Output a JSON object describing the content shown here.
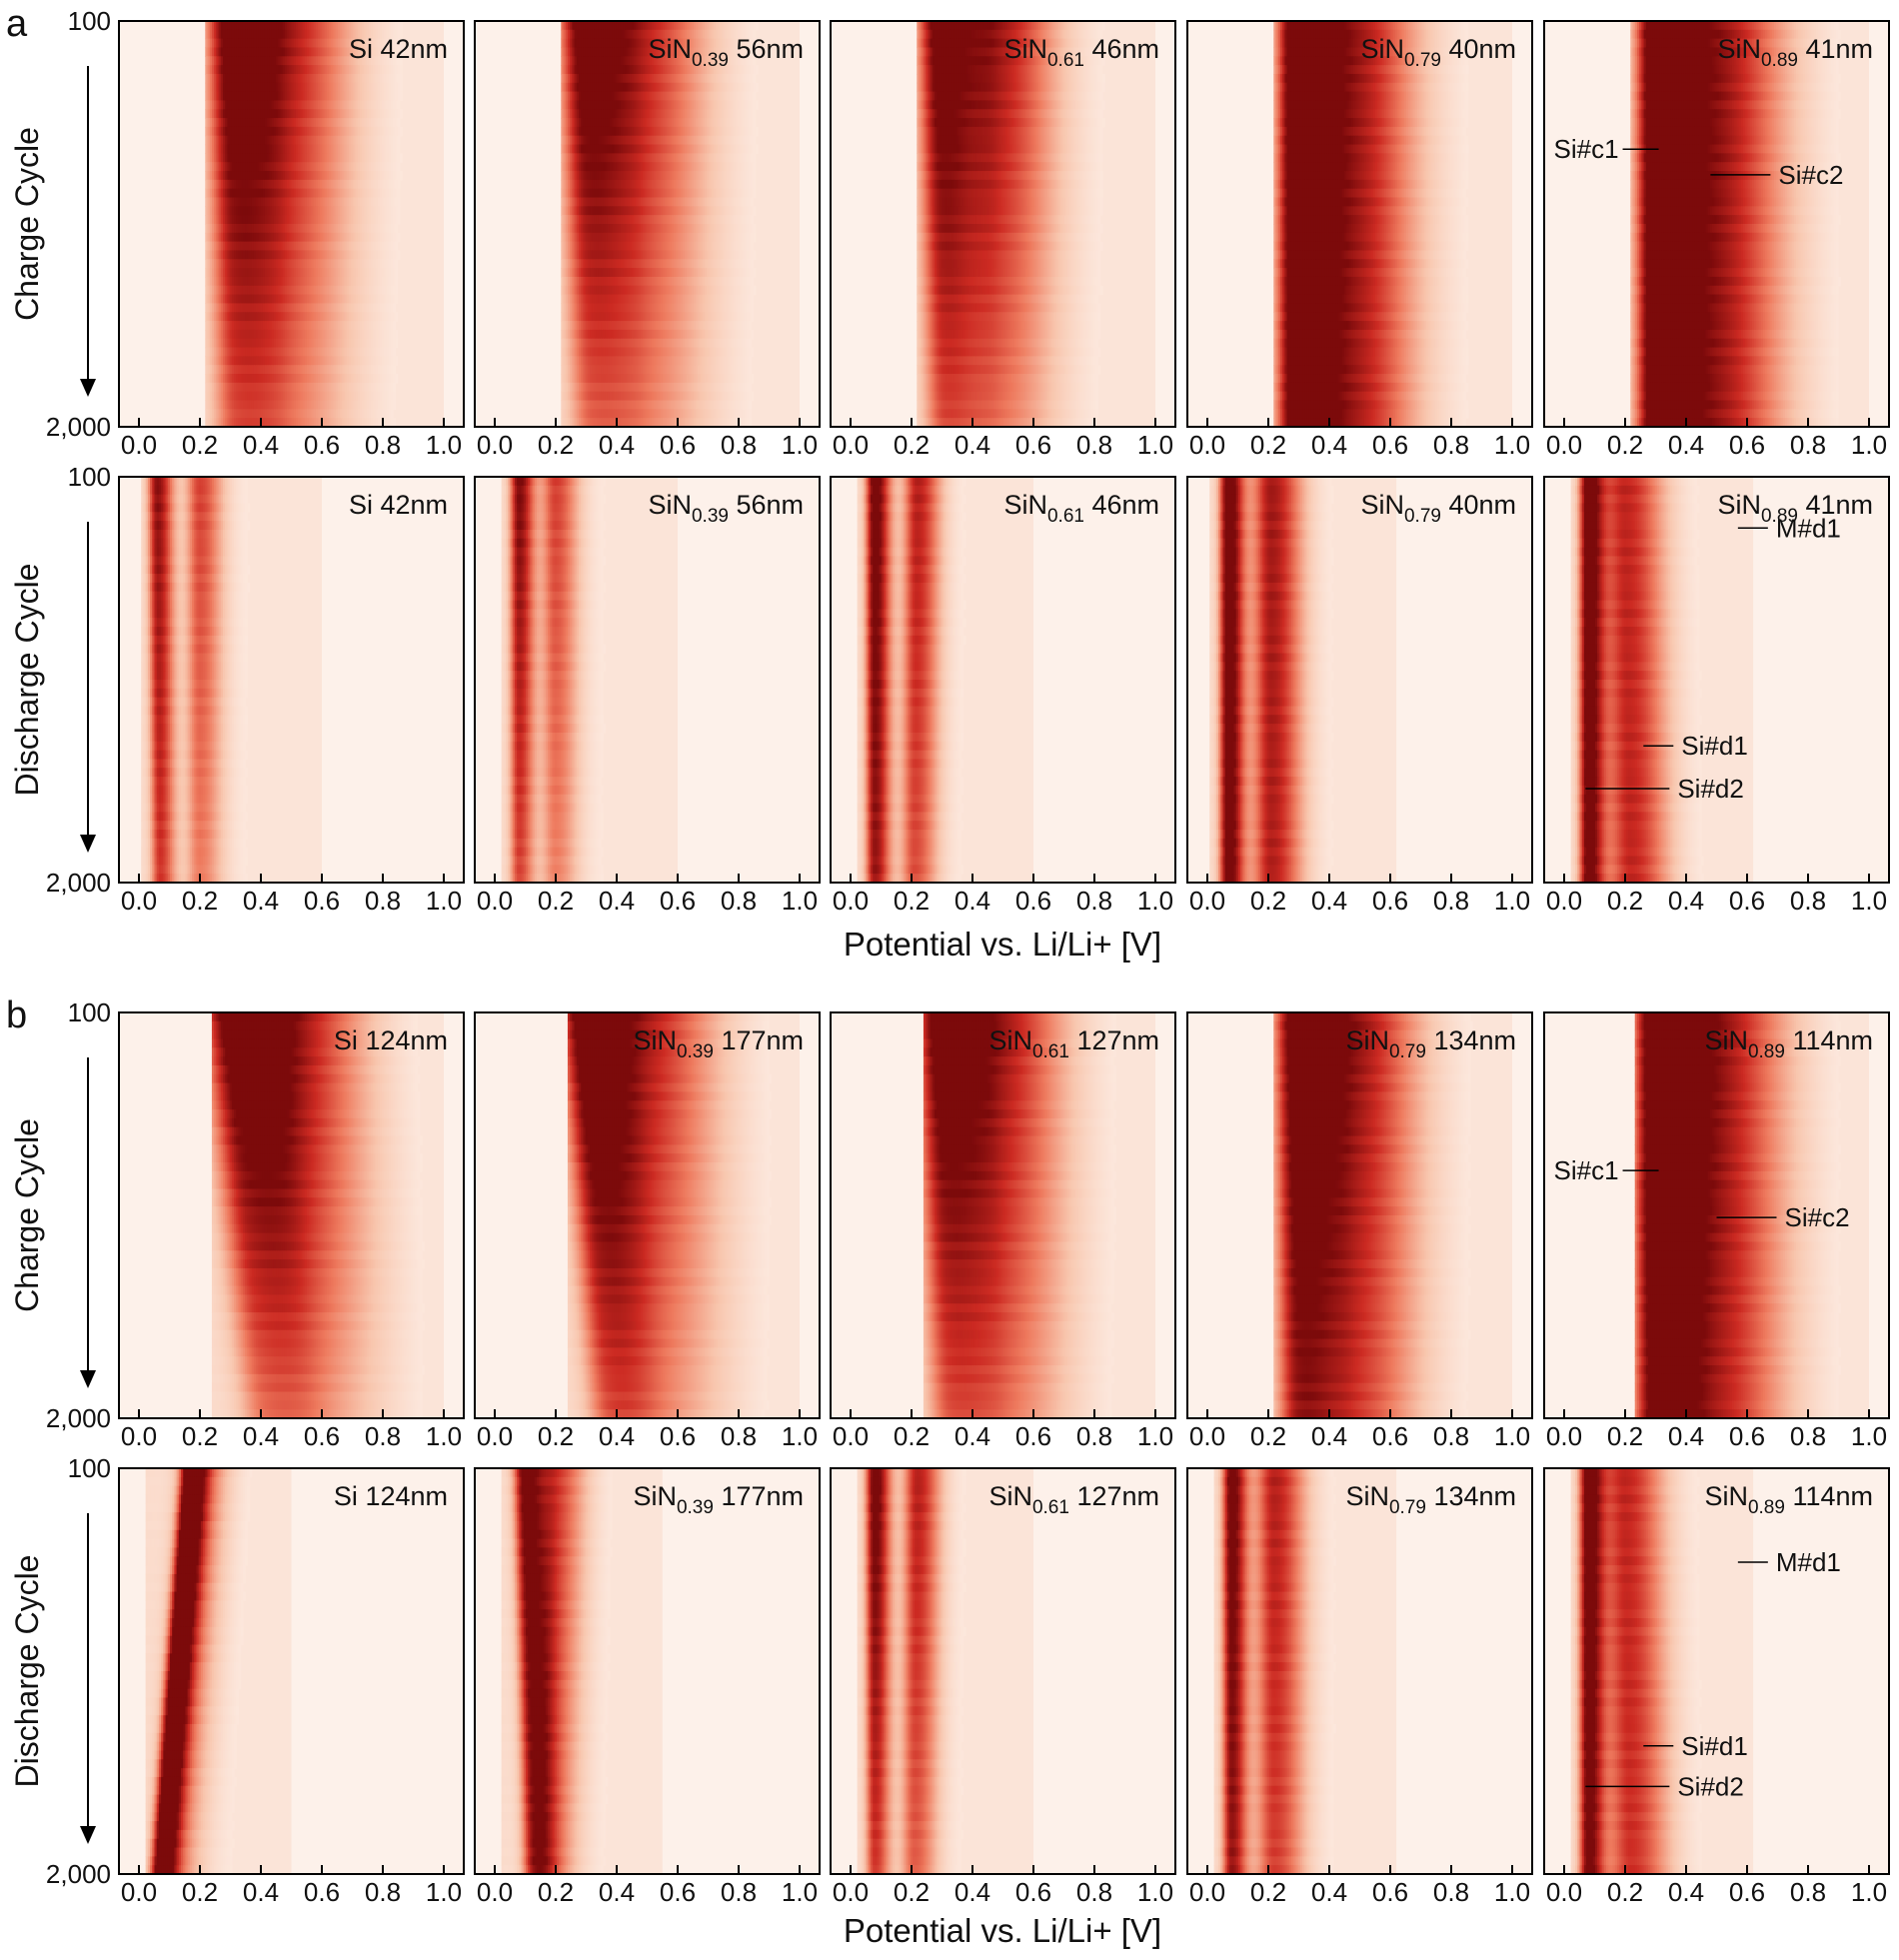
{
  "figure": {
    "x_axis_label": "Potential vs. Li/Li+ [V]",
    "x_ticks": [
      "0.0",
      "0.2",
      "0.4",
      "0.6",
      "0.8",
      "1.0"
    ],
    "y_ticks": [
      "100",
      "2,000"
    ],
    "colormap": [
      "#fdf1ea",
      "#f8c6ae",
      "#ee7a5e",
      "#cc2a22",
      "#7c0a0b"
    ],
    "frame_color": "#000000"
  },
  "chart_data": [
    {
      "panel": "a",
      "type": "heatmap",
      "description_label": "",
      "rows": [
        {
          "ylabel": "Charge Cycle",
          "kind": "charge",
          "ylim": [
            100,
            2000
          ],
          "xlim": [
            0.0,
            1.0
          ],
          "subplots": [
            {
              "material": "Si",
              "sub": "",
              "thickness": "42nm",
              "peaks": [
                {
                  "v": [
                    0.3,
                    0.32
                  ],
                  "w": 0.05,
                  "a": [
                    1.0,
                    0.45
                  ]
                },
                {
                  "v": [
                    0.47,
                    0.48
                  ],
                  "w": 0.09,
                  "a": [
                    0.75,
                    0.38
                  ]
                }
              ],
              "extent": [
                0.24,
                1.0
              ],
              "annotations": []
            },
            {
              "material": "SiN",
              "sub": "0.39",
              "thickness": "56nm",
              "peaks": [
                {
                  "v": [
                    0.29,
                    0.32
                  ],
                  "w": 0.05,
                  "a": [
                    1.0,
                    0.4
                  ]
                },
                {
                  "v": [
                    0.47,
                    0.49
                  ],
                  "w": 0.09,
                  "a": [
                    0.7,
                    0.35
                  ]
                }
              ],
              "extent": [
                0.24,
                1.0
              ],
              "annotations": []
            },
            {
              "material": "SiN",
              "sub": "0.61",
              "thickness": "46nm",
              "peaks": [
                {
                  "v": [
                    0.29,
                    0.31
                  ],
                  "w": 0.045,
                  "a": [
                    1.0,
                    0.5
                  ]
                },
                {
                  "v": [
                    0.47,
                    0.48
                  ],
                  "w": 0.08,
                  "a": [
                    0.8,
                    0.4
                  ]
                }
              ],
              "extent": [
                0.24,
                1.0
              ],
              "annotations": []
            },
            {
              "material": "SiN",
              "sub": "0.79",
              "thickness": "40nm",
              "peaks": [
                {
                  "v": [
                    0.29,
                    0.29
                  ],
                  "w": 0.04,
                  "a": [
                    1.05,
                    1.0
                  ]
                },
                {
                  "v": [
                    0.45,
                    0.45
                  ],
                  "w": 0.09,
                  "a": [
                    0.85,
                    0.8
                  ]
                }
              ],
              "extent": [
                0.24,
                1.0
              ],
              "annotations": []
            },
            {
              "material": "SiN",
              "sub": "0.89",
              "thickness": "41nm",
              "peaks": [
                {
                  "v": [
                    0.3,
                    0.3
                  ],
                  "w": 0.04,
                  "a": [
                    1.05,
                    1.0
                  ]
                },
                {
                  "v": [
                    0.46,
                    0.46
                  ],
                  "w": 0.1,
                  "a": [
                    0.9,
                    0.85
                  ]
                }
              ],
              "extent": [
                0.24,
                1.0
              ],
              "annotations": [
                {
                  "text": "Si#c1",
                  "side": "left",
                  "x": 0.31,
                  "cycle": 700
                },
                {
                  "text": "Si#c2",
                  "side": "right",
                  "x": 0.48,
                  "cycle": 820
                }
              ]
            }
          ]
        },
        {
          "ylabel": "Discharge Cycle",
          "kind": "discharge",
          "ylim": [
            100,
            2000
          ],
          "xlim": [
            0.0,
            1.0
          ],
          "subplots": [
            {
              "material": "Si",
              "sub": "",
              "thickness": "42nm",
              "peaks": [
                {
                  "v": [
                    0.06,
                    0.07
                  ],
                  "w": 0.02,
                  "a": [
                    0.85,
                    0.6
                  ]
                },
                {
                  "v": [
                    0.2,
                    0.2
                  ],
                  "w": 0.03,
                  "a": [
                    0.6,
                    0.4
                  ]
                }
              ],
              "extent": [
                0.03,
                0.6
              ],
              "annotations": []
            },
            {
              "material": "SiN",
              "sub": "0.39",
              "thickness": "56nm",
              "peaks": [
                {
                  "v": [
                    0.08,
                    0.08
                  ],
                  "w": 0.02,
                  "a": [
                    0.9,
                    0.55
                  ]
                },
                {
                  "v": [
                    0.2,
                    0.2
                  ],
                  "w": 0.03,
                  "a": [
                    0.6,
                    0.38
                  ]
                }
              ],
              "extent": [
                0.04,
                0.6
              ],
              "annotations": []
            },
            {
              "material": "SiN",
              "sub": "0.61",
              "thickness": "46nm",
              "peaks": [
                {
                  "v": [
                    0.08,
                    0.08
                  ],
                  "w": 0.02,
                  "a": [
                    1.0,
                    0.8
                  ]
                },
                {
                  "v": [
                    0.22,
                    0.21
                  ],
                  "w": 0.03,
                  "a": [
                    0.75,
                    0.55
                  ]
                }
              ],
              "extent": [
                0.04,
                0.6
              ],
              "annotations": []
            },
            {
              "material": "SiN",
              "sub": "0.79",
              "thickness": "40nm",
              "peaks": [
                {
                  "v": [
                    0.07,
                    0.07
                  ],
                  "w": 0.02,
                  "a": [
                    1.05,
                    1.0
                  ]
                },
                {
                  "v": [
                    0.21,
                    0.21
                  ],
                  "w": 0.04,
                  "a": [
                    0.8,
                    0.75
                  ]
                }
              ],
              "extent": [
                0.03,
                0.62
              ],
              "annotations": []
            },
            {
              "material": "SiN",
              "sub": "0.89",
              "thickness": "41nm",
              "peaks": [
                {
                  "v": [
                    0.08,
                    0.08
                  ],
                  "w": 0.02,
                  "a": [
                    1.05,
                    1.0
                  ]
                },
                {
                  "v": [
                    0.2,
                    0.22
                  ],
                  "w": 0.05,
                  "a": [
                    0.7,
                    0.7
                  ]
                }
              ],
              "extent": [
                0.04,
                0.62
              ],
              "annotations": [
                {
                  "text": "M#d1",
                  "side": "right",
                  "x": 0.57,
                  "cycle": 340
                },
                {
                  "text": "Si#d1",
                  "side": "right",
                  "x": 0.26,
                  "cycle": 1360
                },
                {
                  "text": "Si#d2",
                  "side": "right",
                  "x": 0.07,
                  "cycle": 1560
                }
              ]
            }
          ]
        }
      ]
    },
    {
      "panel": "b",
      "type": "heatmap",
      "rows": [
        {
          "ylabel": "Charge Cycle",
          "kind": "charge",
          "ylim": [
            100,
            2000
          ],
          "xlim": [
            0.0,
            1.0
          ],
          "subplots": [
            {
              "material": "Si",
              "sub": "",
              "thickness": "124nm",
              "peaks": [
                {
                  "v": [
                    0.3,
                    0.42
                  ],
                  "w": 0.06,
                  "a": [
                    0.95,
                    0.35
                  ]
                },
                {
                  "v": [
                    0.48,
                    0.58
                  ],
                  "w": 0.1,
                  "a": [
                    0.8,
                    0.3
                  ]
                }
              ],
              "extent": [
                0.26,
                1.0
              ],
              "annotations": []
            },
            {
              "material": "SiN",
              "sub": "0.39",
              "thickness": "177nm",
              "peaks": [
                {
                  "v": [
                    0.29,
                    0.38
                  ],
                  "w": 0.05,
                  "a": [
                    1.0,
                    0.4
                  ]
                },
                {
                  "v": [
                    0.47,
                    0.52
                  ],
                  "w": 0.1,
                  "a": [
                    0.75,
                    0.35
                  ]
                }
              ],
              "extent": [
                0.26,
                1.0
              ],
              "annotations": []
            },
            {
              "material": "SiN",
              "sub": "0.61",
              "thickness": "127nm",
              "peaks": [
                {
                  "v": [
                    0.29,
                    0.33
                  ],
                  "w": 0.05,
                  "a": [
                    1.0,
                    0.45
                  ]
                },
                {
                  "v": [
                    0.47,
                    0.5
                  ],
                  "w": 0.09,
                  "a": [
                    0.8,
                    0.4
                  ]
                }
              ],
              "extent": [
                0.26,
                1.0
              ],
              "annotations": []
            },
            {
              "material": "SiN",
              "sub": "0.79",
              "thickness": "134nm",
              "peaks": [
                {
                  "v": [
                    0.29,
                    0.3
                  ],
                  "w": 0.045,
                  "a": [
                    1.0,
                    0.7
                  ]
                },
                {
                  "v": [
                    0.46,
                    0.47
                  ],
                  "w": 0.09,
                  "a": [
                    0.85,
                    0.6
                  ]
                }
              ],
              "extent": [
                0.24,
                1.0
              ],
              "annotations": []
            },
            {
              "material": "SiN",
              "sub": "0.89",
              "thickness": "114nm",
              "peaks": [
                {
                  "v": [
                    0.3,
                    0.3
                  ],
                  "w": 0.045,
                  "a": [
                    1.05,
                    0.9
                  ]
                },
                {
                  "v": [
                    0.46,
                    0.47
                  ],
                  "w": 0.1,
                  "a": [
                    0.9,
                    0.75
                  ]
                }
              ],
              "extent": [
                0.25,
                1.0
              ],
              "annotations": [
                {
                  "text": "Si#c1",
                  "side": "left",
                  "x": 0.31,
                  "cycle": 840
                },
                {
                  "text": "Si#c2",
                  "side": "right",
                  "x": 0.5,
                  "cycle": 1060
                }
              ]
            }
          ]
        },
        {
          "ylabel": "Discharge Cycle",
          "kind": "discharge",
          "ylim": [
            100,
            2000
          ],
          "xlim": [
            0.0,
            1.0
          ],
          "subplots": [
            {
              "material": "Si",
              "sub": "",
              "thickness": "124nm",
              "peaks": [
                {
                  "v": [
                    0.17,
                    0.07
                  ],
                  "w": 0.02,
                  "a": [
                    0.95,
                    0.95
                  ]
                },
                {
                  "v": [
                    0.19,
                    0.1
                  ],
                  "w": 0.04,
                  "a": [
                    0.55,
                    0.4
                  ]
                }
              ],
              "extent": [
                0.04,
                0.5
              ],
              "annotations": []
            },
            {
              "material": "SiN",
              "sub": "0.39",
              "thickness": "177nm",
              "peaks": [
                {
                  "v": [
                    0.1,
                    0.13
                  ],
                  "w": 0.025,
                  "a": [
                    1.0,
                    0.6
                  ]
                },
                {
                  "v": [
                    0.2,
                    0.17
                  ],
                  "w": 0.04,
                  "a": [
                    0.6,
                    0.45
                  ]
                }
              ],
              "extent": [
                0.04,
                0.55
              ],
              "annotations": []
            },
            {
              "material": "SiN",
              "sub": "0.61",
              "thickness": "127nm",
              "peaks": [
                {
                  "v": [
                    0.08,
                    0.08
                  ],
                  "w": 0.02,
                  "a": [
                    1.0,
                    0.6
                  ]
                },
                {
                  "v": [
                    0.22,
                    0.21
                  ],
                  "w": 0.03,
                  "a": [
                    0.75,
                    0.5
                  ]
                }
              ],
              "extent": [
                0.04,
                0.6
              ],
              "annotations": []
            },
            {
              "material": "SiN",
              "sub": "0.79",
              "thickness": "134nm",
              "peaks": [
                {
                  "v": [
                    0.08,
                    0.08
                  ],
                  "w": 0.02,
                  "a": [
                    1.0,
                    0.8
                  ]
                },
                {
                  "v": [
                    0.22,
                    0.22
                  ],
                  "w": 0.04,
                  "a": [
                    0.75,
                    0.6
                  ]
                }
              ],
              "extent": [
                0.04,
                0.62
              ],
              "annotations": []
            },
            {
              "material": "SiN",
              "sub": "0.89",
              "thickness": "114nm",
              "peaks": [
                {
                  "v": [
                    0.08,
                    0.08
                  ],
                  "w": 0.02,
                  "a": [
                    1.05,
                    0.95
                  ]
                },
                {
                  "v": [
                    0.2,
                    0.22
                  ],
                  "w": 0.05,
                  "a": [
                    0.7,
                    0.65
                  ]
                }
              ],
              "extent": [
                0.04,
                0.62
              ],
              "annotations": [
                {
                  "text": "M#d1",
                  "side": "right",
                  "x": 0.57,
                  "cycle": 540
                },
                {
                  "text": "Si#d1",
                  "side": "right",
                  "x": 0.26,
                  "cycle": 1400
                },
                {
                  "text": "Si#d2",
                  "side": "right",
                  "x": 0.07,
                  "cycle": 1590
                }
              ]
            }
          ]
        }
      ]
    }
  ]
}
